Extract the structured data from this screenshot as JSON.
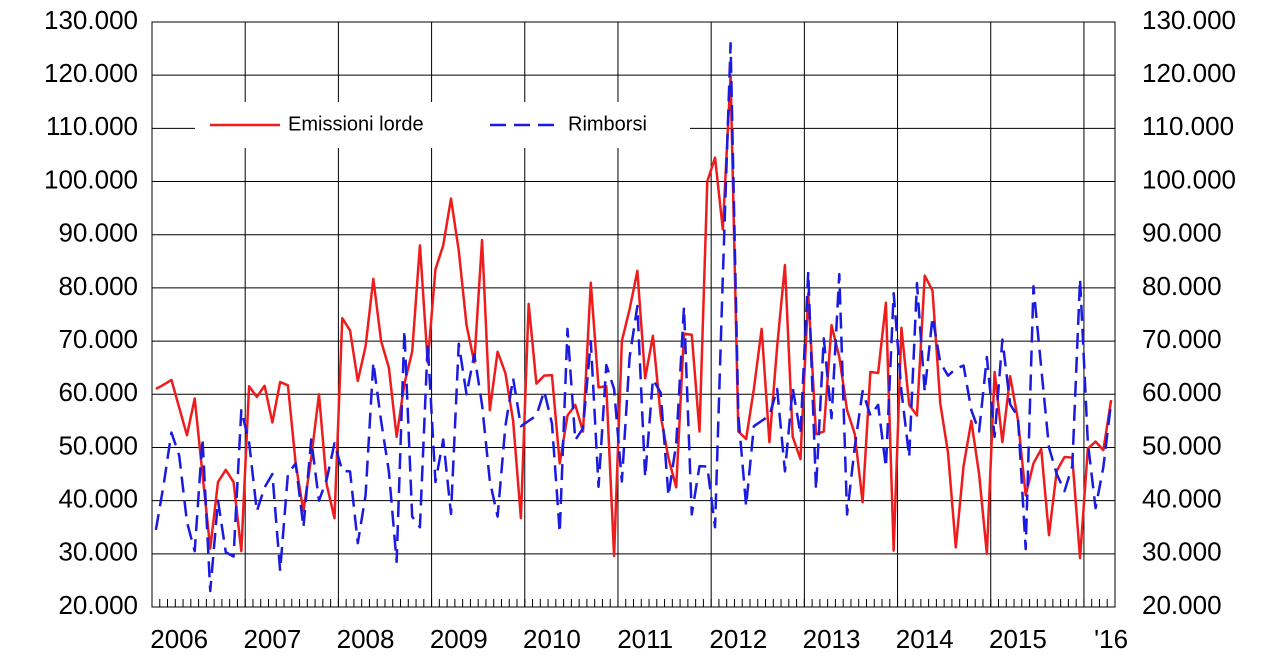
{
  "chart_data": {
    "type": "line",
    "categories": [
      null,
      null,
      null,
      "2006",
      null,
      null,
      null,
      null,
      null,
      null,
      null,
      null,
      null,
      null,
      null,
      "2007",
      null,
      null,
      null,
      null,
      null,
      null,
      null,
      null,
      null,
      null,
      null,
      "2008",
      null,
      null,
      null,
      null,
      null,
      null,
      null,
      null,
      null,
      null,
      null,
      "2009",
      null,
      null,
      null,
      null,
      null,
      null,
      null,
      null,
      null,
      null,
      null,
      "2010",
      null,
      null,
      null,
      null,
      null,
      null,
      null,
      null,
      null,
      null,
      null,
      "2011",
      null,
      null,
      null,
      null,
      null,
      null,
      null,
      null,
      null,
      null,
      null,
      "2012",
      null,
      null,
      null,
      null,
      null,
      null,
      null,
      null,
      null,
      null,
      null,
      "2013",
      null,
      null,
      null,
      null,
      null,
      null,
      null,
      null,
      null,
      null,
      null,
      "2014",
      null,
      null,
      null,
      null,
      null,
      null,
      null,
      null,
      null,
      null,
      null,
      "2015",
      null,
      null,
      null,
      null,
      null,
      null,
      null,
      null,
      null,
      null,
      null,
      "'16"
    ],
    "series": [
      {
        "name": "Emissioni lorde",
        "color": "#ee1c1c",
        "dash": false,
        "values": [
          61000,
          61800,
          62700,
          57500,
          52300,
          59200,
          45000,
          31000,
          43500,
          45800,
          43500,
          30500,
          61500,
          59500,
          61600,
          54700,
          62300,
          61700,
          47000,
          38000,
          48000,
          60000,
          43000,
          36700,
          74300,
          72000,
          62500,
          69000,
          81700,
          70000,
          65000,
          52000,
          62000,
          68000,
          88000,
          66000,
          83500,
          88000,
          96800,
          87000,
          73000,
          66000,
          89000,
          57000,
          68000,
          64000,
          55000,
          36700,
          77000,
          62000,
          63500,
          63600,
          47000,
          56000,
          58000,
          53000,
          81000,
          61300,
          61500,
          29600,
          70000,
          76000,
          83200,
          63000,
          71000,
          56000,
          48000,
          42500,
          71400,
          71200,
          53000,
          100000,
          104500,
          91000,
          120000,
          53000,
          51600,
          61000,
          72300,
          51000,
          69000,
          84300,
          52000,
          47800,
          79000,
          52500,
          53000,
          73000,
          67000,
          57000,
          52500,
          39700,
          64200,
          64000,
          77200,
          30600,
          72500,
          58000,
          56000,
          82300,
          79500,
          58300,
          49000,
          31200,
          46500,
          55000,
          45000,
          30000,
          64200,
          51000,
          63400,
          55200,
          41000,
          47000,
          49700,
          33500,
          45600,
          48200,
          48100,
          29200,
          49800,
          51100,
          49500,
          58900
        ]
      },
      {
        "name": "Rimborsi",
        "color": "#1a1ae0",
        "dash": true,
        "values": [
          34500,
          43000,
          52800,
          48500,
          36000,
          30500,
          51700,
          23000,
          40000,
          30300,
          29500,
          57000,
          51000,
          38000,
          42500,
          45000,
          26800,
          45000,
          47000,
          35000,
          51500,
          40000,
          44000,
          50800,
          45600,
          45500,
          32000,
          41000,
          66000,
          55000,
          45500,
          28500,
          72000,
          37000,
          35000,
          69500,
          43500,
          51500,
          37500,
          69500,
          60000,
          67500,
          58000,
          43700,
          37000,
          54000,
          63000,
          54000,
          55000,
          56000,
          60600,
          54500,
          34000,
          72300,
          51400,
          53600,
          70000,
          42600,
          65500,
          61000,
          43600,
          67000,
          76600,
          44400,
          62800,
          60300,
          40900,
          50700,
          76400,
          37400,
          46500,
          46400,
          35000,
          82000,
          126000,
          56000,
          39000,
          54000,
          55000,
          56000,
          61000,
          45500,
          61200,
          52500,
          83000,
          42100,
          70500,
          55500,
          82600,
          37400,
          50200,
          60600,
          56000,
          58000,
          46300,
          79000,
          60600,
          48200,
          80900,
          60500,
          74500,
          66000,
          63500,
          64800,
          65400,
          57000,
          53000,
          67000,
          52000,
          70300,
          58100,
          55800,
          30900,
          80300,
          65000,
          50000,
          45000,
          41800,
          46500,
          81700,
          51000,
          38600,
          46300,
          58500
        ]
      }
    ],
    "ylim": [
      20000,
      130000
    ],
    "yticks": [
      {
        "value": 20000,
        "label": "20.000"
      },
      {
        "value": 30000,
        "label": "30.000"
      },
      {
        "value": 40000,
        "label": "40.000"
      },
      {
        "value": 50000,
        "label": "50.000"
      },
      {
        "value": 60000,
        "label": "60.000"
      },
      {
        "value": 70000,
        "label": "70.000"
      },
      {
        "value": 80000,
        "label": "80.000"
      },
      {
        "value": 90000,
        "label": "90.000"
      },
      {
        "value": 100000,
        "label": "100.000"
      },
      {
        "value": 110000,
        "label": "110.000"
      },
      {
        "value": 120000,
        "label": "120.000"
      },
      {
        "value": 130000,
        "label": "130.000"
      }
    ],
    "y2lim": [
      20000,
      130000
    ],
    "y2ticks": [
      {
        "value": 20000,
        "label": "20.000"
      },
      {
        "value": 30000,
        "label": "30.000"
      },
      {
        "value": 40000,
        "label": "40.000"
      },
      {
        "value": 50000,
        "label": "50.000"
      },
      {
        "value": 60000,
        "label": "60.000"
      },
      {
        "value": 70000,
        "label": "70.000"
      },
      {
        "value": 80000,
        "label": "80.000"
      },
      {
        "value": 90000,
        "label": "90.000"
      },
      {
        "value": 100000,
        "label": "100.000"
      },
      {
        "value": 110000,
        "label": "110.000"
      },
      {
        "value": 120000,
        "label": "120.000"
      },
      {
        "value": 130000,
        "label": "130.000"
      }
    ],
    "grid": true,
    "legend": "upper left"
  }
}
